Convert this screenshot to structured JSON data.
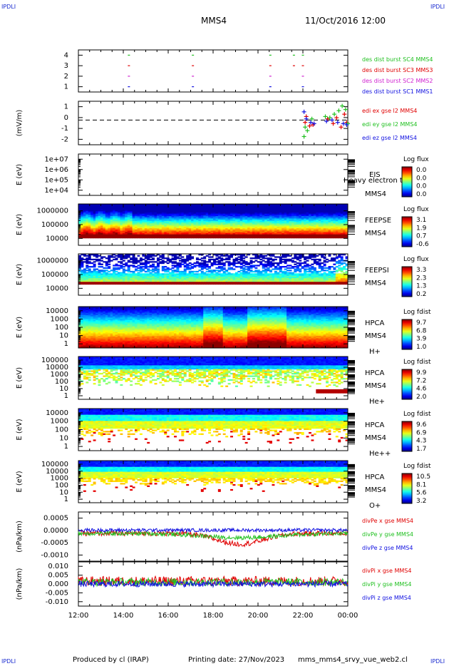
{
  "corners": {
    "tl": "IPDLI",
    "tr": "IPDLI",
    "bl": "IPDLI",
    "br": "IPDLI"
  },
  "header": {
    "title": "MMS4",
    "date": "11/Oct/2016 12:00"
  },
  "footer": {
    "producer": "Produced by cl (IRAP)",
    "printing": "Printing date: 27/Nov/2023",
    "filename": "mms_mms4_srvy_vue_web2.cl"
  },
  "colors": {
    "blue": "#1010e0",
    "magenta": "#d020d0",
    "red": "#e00000",
    "green": "#20c020"
  },
  "chart_data": [
    {
      "type": "scatter",
      "id": "p1",
      "title": "",
      "ylabel": "",
      "ylim": [
        0.5,
        4.5
      ],
      "yticks": [
        "1",
        "2",
        "3",
        "4"
      ],
      "series": [
        {
          "name": "des dist burst SC1 MMS1",
          "color": "#1010e0",
          "y": 1,
          "x": [
            14.25,
            17.1,
            20.55,
            22.0
          ]
        },
        {
          "name": "des dist burst SC2 MMS2",
          "color": "#d020d0",
          "y": 2,
          "x": [
            14.25,
            17.1,
            20.55,
            22.0
          ]
        },
        {
          "name": "des dist burst SC3 MMS3",
          "color": "#e00000",
          "y": 3,
          "x": [
            14.25,
            17.1,
            20.55,
            21.6,
            22.0
          ]
        },
        {
          "name": "des dist burst SC4 MMS4",
          "color": "#20c020",
          "y": 4,
          "x": [
            14.25,
            17.1,
            20.55,
            21.6,
            22.0
          ]
        }
      ]
    },
    {
      "type": "scatter",
      "id": "p2",
      "ylabel": "(mV/m)",
      "ylim": [
        -2.1,
        1.6
      ],
      "yticks": [
        "-2",
        "-1",
        "0",
        "1"
      ],
      "series": [
        {
          "name": "edi ex gse l2 MMS4",
          "color": "#e00000",
          "x": [
            22.1,
            22.15,
            22.3,
            22.45,
            23.1,
            23.35,
            23.5,
            23.7,
            23.85,
            23.95
          ],
          "y": [
            -0.2,
            0.3,
            -0.5,
            -0.4,
            0.1,
            -0.3,
            0.2,
            -0.6,
            0.5,
            -0.2
          ]
        },
        {
          "name": "edi ey gse l2 MMS4",
          "color": "#20c020",
          "x": [
            22.05,
            22.1,
            22.2,
            22.4,
            23.0,
            23.2,
            23.4,
            23.6,
            23.75,
            23.9,
            24.0
          ],
          "y": [
            -1.4,
            -0.6,
            -0.9,
            0.1,
            0.3,
            0.2,
            0.5,
            0.8,
            1.2,
            0.9,
            -0.3
          ]
        },
        {
          "name": "edi ez gse l2 MMS4",
          "color": "#1010e0",
          "x": [
            22.05,
            22.15,
            22.35,
            22.5,
            23.05,
            23.3,
            23.55,
            23.8,
            23.95
          ],
          "y": [
            0.7,
            0.1,
            -0.2,
            -0.3,
            -0.1,
            0.0,
            -0.2,
            -0.3,
            -0.4
          ]
        }
      ]
    },
    {
      "type": "heatmap",
      "id": "p3",
      "ylabel": "E (eV)",
      "yticks": [
        "1e+04",
        "1e+05",
        "1e+06",
        "1e+07"
      ],
      "instrument": [
        "EIS",
        "MMS4"
      ],
      "note": "Heavy electron to",
      "cb_title": "Log flux",
      "cb_ticks": [
        "0.0",
        "0.0",
        "0.0",
        "0.0"
      ],
      "empty": true
    },
    {
      "type": "heatmap",
      "id": "p4",
      "ylabel": "E (eV)",
      "yticks": [
        "10000",
        "100000",
        "1000000"
      ],
      "instrument": [
        "FEEPSE",
        "MMS4"
      ],
      "cb_title": "Log flux",
      "cb_ticks": [
        "3.1",
        "1.9",
        "0.7",
        "-0.6"
      ]
    },
    {
      "type": "heatmap",
      "id": "p5",
      "ylabel": "E (eV)",
      "yticks": [
        "10000",
        "100000",
        "1000000"
      ],
      "instrument": [
        "FEEPSI",
        "MMS4"
      ],
      "cb_title": "Log flux",
      "cb_ticks": [
        "3.3",
        "2.3",
        "1.3",
        "0.2"
      ]
    },
    {
      "type": "heatmap",
      "id": "p6",
      "ylabel": "E (eV)",
      "yticks": [
        "1",
        "10",
        "100",
        "1000",
        "10000"
      ],
      "instrument": [
        "HPCA",
        "MMS4",
        "H+"
      ],
      "cb_title": "Log fdist",
      "cb_ticks": [
        "9.7",
        "6.8",
        "3.9",
        "1.0"
      ]
    },
    {
      "type": "heatmap",
      "id": "p7",
      "ylabel": "E (eV)",
      "yticks": [
        "1",
        "10",
        "100",
        "1000",
        "10000",
        "100000"
      ],
      "instrument": [
        "HPCA",
        "MMS4",
        "He+"
      ],
      "cb_title": "Log fdist",
      "cb_ticks": [
        "9.9",
        "7.2",
        "4.6",
        "2.0"
      ]
    },
    {
      "type": "heatmap",
      "id": "p8",
      "ylabel": "E (eV)",
      "yticks": [
        "1",
        "10",
        "100",
        "1000",
        "10000"
      ],
      "instrument": [
        "HPCA",
        "MMS4",
        "He++"
      ],
      "cb_title": "Log fdist",
      "cb_ticks": [
        "9.6",
        "6.9",
        "4.3",
        "1.7"
      ]
    },
    {
      "type": "heatmap",
      "id": "p9",
      "ylabel": "E (eV)",
      "yticks": [
        "1",
        "10",
        "100",
        "1000",
        "10000",
        "100000"
      ],
      "instrument": [
        "HPCA",
        "MMS4",
        "O+"
      ],
      "cb_title": "Log fdist",
      "cb_ticks": [
        "10.5",
        "8.1",
        "5.6",
        "3.2"
      ]
    },
    {
      "type": "line",
      "id": "p10",
      "ylabel": "(nPa/km)",
      "ylim": [
        -0.0014,
        0.0009
      ],
      "yticks": [
        "-0.0010",
        "-0.0005",
        "0.0000",
        "0.0005"
      ],
      "series": [
        {
          "name": "divPe x gse MMS4",
          "color": "#e00000",
          "base": -0.0001,
          "noise": 0.00012
        },
        {
          "name": "divPe y gse MMS4",
          "color": "#20c020",
          "base": -0.0001,
          "noise": 0.0001
        },
        {
          "name": "divPe z gse MMS4",
          "color": "#1010e0",
          "base": 5e-05,
          "noise": 8e-05
        }
      ]
    },
    {
      "type": "line",
      "id": "p11",
      "ylabel": "(nPa/km)",
      "ylim": [
        -0.0115,
        0.0115
      ],
      "yticks": [
        "-0.010",
        "-0.005",
        "0.000",
        "0.005",
        "0.010"
      ],
      "series": [
        {
          "name": "divPi x gse MMS4",
          "color": "#e00000",
          "base": 0.0015,
          "noise": 0.0025
        },
        {
          "name": "divPi y gse MMS4",
          "color": "#20c020",
          "base": 0.001,
          "noise": 0.002
        },
        {
          "name": "divPi z gse MMS4",
          "color": "#1010e0",
          "base": 0.0,
          "noise": 0.0015
        }
      ]
    }
  ],
  "xaxis": {
    "ticks": [
      "12:00",
      "14:00",
      "16:00",
      "18:00",
      "20:00",
      "22:00",
      "00:00"
    ],
    "range_hours": [
      12,
      24
    ]
  }
}
